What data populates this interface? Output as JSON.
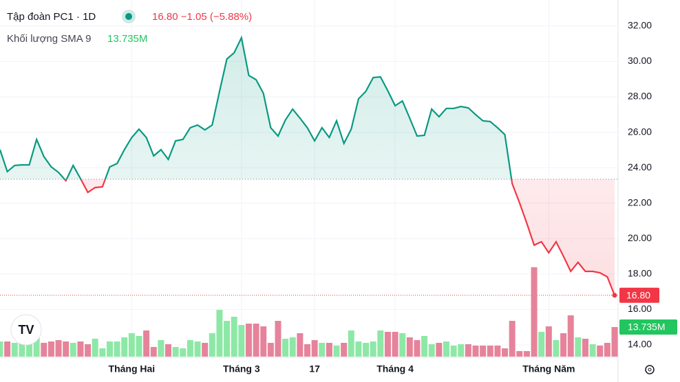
{
  "header": {
    "symbol": "Tập đoàn PC1",
    "interval": "1D",
    "change": "−1.05",
    "change_pct": "(−5.88%)"
  },
  "chart_data": {
    "type": "line",
    "categories": [
      null,
      null,
      null,
      null,
      null,
      null,
      null,
      null,
      null,
      null,
      null,
      null,
      null,
      null,
      null,
      null,
      null,
      null,
      "Tháng Hai",
      null,
      null,
      null,
      null,
      null,
      null,
      null,
      null,
      null,
      null,
      null,
      null,
      null,
      null,
      "Tháng 3",
      null,
      null,
      null,
      null,
      null,
      null,
      null,
      null,
      null,
      "17",
      null,
      null,
      null,
      null,
      null,
      null,
      null,
      null,
      null,
      null,
      "Tháng 4",
      null,
      null,
      null,
      null,
      null,
      null,
      null,
      null,
      null,
      null,
      null,
      null,
      null,
      null,
      null,
      null,
      null,
      null,
      null,
      null,
      "Tháng Năm",
      null,
      null,
      null,
      null,
      null,
      null,
      null,
      null,
      null
    ],
    "series": [
      {
        "values": [
          25.02,
          23.78,
          24.13,
          24.16,
          24.16,
          25.6,
          24.63,
          24.05,
          23.74,
          23.27,
          24.13,
          23.39,
          22.61,
          22.88,
          22.92,
          24.05,
          24.24,
          25.02,
          25.71,
          26.18,
          25.71,
          24.67,
          25.02,
          24.47,
          25.52,
          25.6,
          26.26,
          26.41,
          26.14,
          26.41,
          28.3,
          30.14,
          30.49,
          31.34,
          29.21,
          28.97,
          28.2,
          26.26,
          25.79,
          26.69,
          27.31,
          26.8,
          26.26,
          25.52,
          26.26,
          25.71,
          26.65,
          25.37,
          26.18,
          27.89,
          28.31,
          29.09,
          29.13,
          28.35,
          27.5,
          27.77,
          26.8,
          25.79,
          25.83,
          27.31,
          26.88,
          27.35,
          27.35,
          27.46,
          27.38,
          27.0,
          26.65,
          26.61,
          26.26,
          25.87,
          23.1,
          22.03,
          20.87,
          19.63,
          19.82,
          19.2,
          19.82,
          19.01,
          18.15,
          18.66,
          18.15,
          18.15,
          18.07,
          17.84,
          16.8
        ],
        "color": "#089981",
        "down_color": "#f23645"
      }
    ],
    "baseline": 23.35,
    "last_price": {
      "value": 16.8,
      "label": "16.80"
    },
    "ylim": [
      13.34,
      33.47
    ],
    "yticks": [
      {
        "value": 32,
        "label": "32.00"
      },
      {
        "value": 30,
        "label": "30.00"
      },
      {
        "value": 28,
        "label": "28.00"
      },
      {
        "value": 26,
        "label": "26.00"
      },
      {
        "value": 24,
        "label": "24.00"
      },
      {
        "value": 22,
        "label": "22.00"
      },
      {
        "value": 20,
        "label": "20.00"
      },
      {
        "value": 18,
        "label": "18.00"
      },
      {
        "value": 16,
        "label": "16.00"
      },
      {
        "value": 14,
        "label": "14.00"
      }
    ],
    "grid": true,
    "volume": {
      "name": "Khối lượng SMA 9",
      "values": [
        7.03,
        7.03,
        6.39,
        7.03,
        12.14,
        8.94,
        6.39,
        7.03,
        7.67,
        7.03,
        6.39,
        7.03,
        5.75,
        8.3,
        3.83,
        7.03,
        7.03,
        8.94,
        10.86,
        9.58,
        12.14,
        4.47,
        7.67,
        5.75,
        4.47,
        3.83,
        7.67,
        7.03,
        6.39,
        10.86,
        21.72,
        16.61,
        18.52,
        14.69,
        15.33,
        15.33,
        14.05,
        6.39,
        16.61,
        8.3,
        8.94,
        10.86,
        5.75,
        7.67,
        6.39,
        6.39,
        5.11,
        6.39,
        12.14,
        7.03,
        6.39,
        7.03,
        12.14,
        11.5,
        11.5,
        10.86,
        8.94,
        7.67,
        9.58,
        5.75,
        6.39,
        7.03,
        5.11,
        5.75,
        5.75,
        5.11,
        5.11,
        5.11,
        5.11,
        3.83,
        16.61,
        2.56,
        2.56,
        41.52,
        11.5,
        14.05,
        7.67,
        10.86,
        19.16,
        8.94,
        8.3,
        5.75,
        5.11,
        6.39,
        13.735
      ],
      "up_color": "#8de8a6",
      "down_color": "#e6839b",
      "last": {
        "value": 13.735,
        "label": "13.735M"
      }
    }
  }
}
